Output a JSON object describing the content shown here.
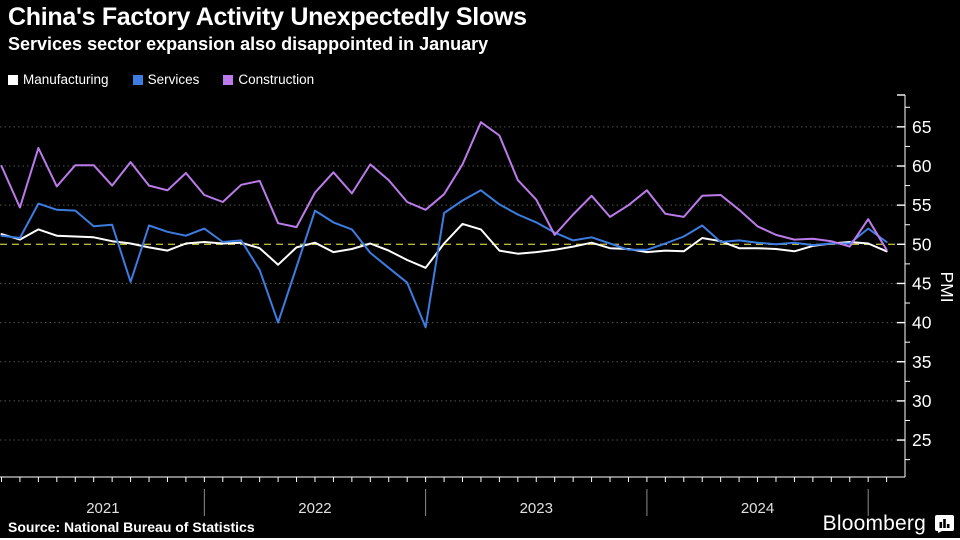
{
  "header": {
    "title": "China's Factory Activity Unexpectedly Slows",
    "subtitle": "Services sector expansion also disappointed in January"
  },
  "chart_data": {
    "type": "line",
    "title": "China's Factory Activity Unexpectedly Slows",
    "subtitle": "Services sector expansion also disappointed in January",
    "x_unit": "month",
    "x_start": "2021-01",
    "x_end": "2025-01",
    "n_points": 49,
    "year_labels": [
      "2021",
      "2022",
      "2023",
      "2024"
    ],
    "ylabel": "PMI",
    "ylim": [
      20.2,
      69.0
    ],
    "yticks": [
      25,
      30,
      35,
      40,
      45,
      50,
      55,
      60,
      65
    ],
    "minor_ytick_step": 2.5,
    "grid": "dotted-horizontal",
    "legend_position": "top-left",
    "reference_line": {
      "value": 50,
      "style": "dashed",
      "color": "#b8b43a"
    },
    "colors": {
      "background": "#000000",
      "axis": "#ffffff",
      "gridline": "#55554a",
      "year_label": "#e0e0e0",
      "year_separator": "#8c8c8c",
      "tick_label": "#ffffff"
    },
    "series": [
      {
        "name": "Manufacturing",
        "color": "#ffffff",
        "values": [
          51.3,
          50.6,
          51.9,
          51.1,
          51.0,
          50.9,
          50.4,
          50.1,
          49.6,
          49.2,
          50.1,
          50.3,
          50.1,
          50.2,
          49.5,
          47.4,
          49.6,
          50.2,
          49.0,
          49.4,
          50.1,
          49.2,
          48.0,
          47.0,
          50.1,
          52.6,
          51.9,
          49.2,
          48.8,
          49.0,
          49.3,
          49.7,
          50.2,
          49.5,
          49.4,
          49.0,
          49.2,
          49.1,
          50.8,
          50.4,
          49.5,
          49.5,
          49.4,
          49.1,
          49.8,
          50.1,
          50.3,
          50.1,
          49.1
        ]
      },
      {
        "name": "Services",
        "color": "#3d7ce0",
        "values": [
          51.1,
          50.8,
          55.2,
          54.4,
          54.3,
          52.3,
          52.5,
          45.2,
          52.4,
          51.6,
          51.1,
          52.0,
          50.3,
          50.5,
          46.7,
          40.0,
          47.1,
          54.3,
          52.8,
          51.9,
          48.9,
          47.0,
          45.1,
          39.4,
          54.0,
          55.6,
          56.9,
          55.1,
          53.8,
          52.8,
          51.5,
          50.5,
          50.9,
          50.1,
          49.3,
          49.3,
          50.1,
          51.0,
          52.4,
          50.3,
          50.5,
          50.2,
          50.0,
          50.2,
          49.9,
          50.1,
          50.1,
          52.0,
          50.3
        ]
      },
      {
        "name": "Construction",
        "color": "#bc7bea",
        "values": [
          60.0,
          54.7,
          62.3,
          57.4,
          60.1,
          60.1,
          57.5,
          60.5,
          57.5,
          56.9,
          59.1,
          56.3,
          55.4,
          57.6,
          58.1,
          52.7,
          52.2,
          56.6,
          59.2,
          56.5,
          60.2,
          58.2,
          55.4,
          54.4,
          56.4,
          60.2,
          65.6,
          63.9,
          58.2,
          55.7,
          51.2,
          53.8,
          56.2,
          53.5,
          55.0,
          56.9,
          53.9,
          53.5,
          56.2,
          56.3,
          54.4,
          52.3,
          51.2,
          50.6,
          50.7,
          50.4,
          49.7,
          53.2,
          49.3
        ]
      }
    ]
  },
  "footer": {
    "source": "Source: National Bureau of Statistics",
    "brand": "Bloomberg",
    "brand_icon": "bar-chart-badge-icon"
  }
}
